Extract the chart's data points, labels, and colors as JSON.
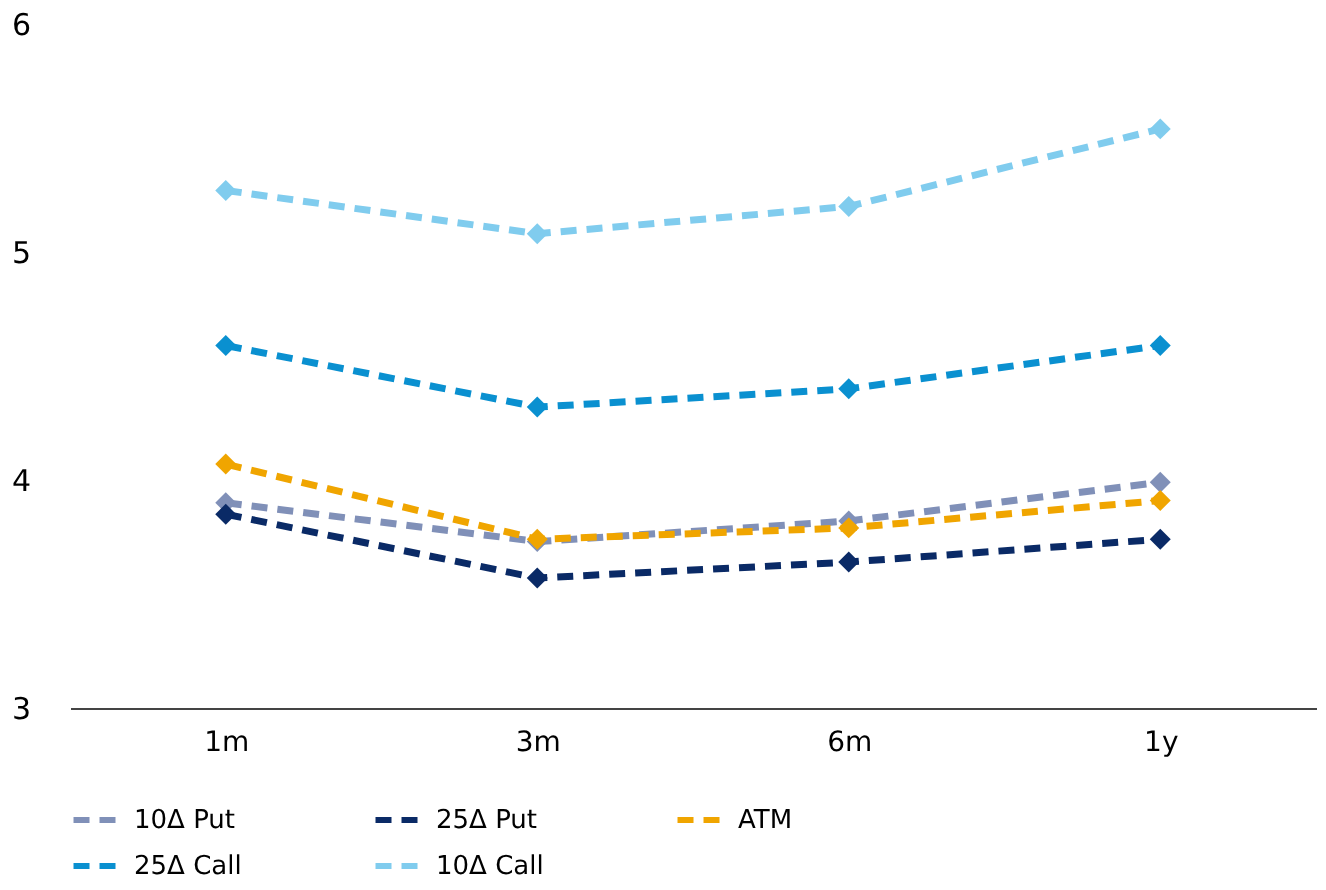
{
  "chart_data": {
    "type": "line",
    "categories": [
      "1m",
      "3m",
      "6m",
      "1y"
    ],
    "series": [
      {
        "name": "10Δ Put",
        "color": "#8090b8",
        "values": [
          3.9,
          3.73,
          3.82,
          3.99
        ]
      },
      {
        "name": "25Δ Put",
        "color": "#0a2a66",
        "values": [
          3.85,
          3.57,
          3.64,
          3.74
        ]
      },
      {
        "name": "ATM",
        "color": "#f0a500",
        "values": [
          4.07,
          3.74,
          3.79,
          3.91
        ]
      },
      {
        "name": "25Δ Call",
        "color": "#0a90d0",
        "values": [
          4.59,
          4.32,
          4.4,
          4.59
        ]
      },
      {
        "name": "10Δ Call",
        "color": "#80ccee",
        "values": [
          5.27,
          5.08,
          5.2,
          5.54
        ]
      }
    ],
    "ylim": [
      3,
      6
    ],
    "yticks": [
      3,
      4,
      5,
      6
    ],
    "grid": false,
    "legend": "bottom",
    "marker": "diamond",
    "line_style": "dashed"
  }
}
